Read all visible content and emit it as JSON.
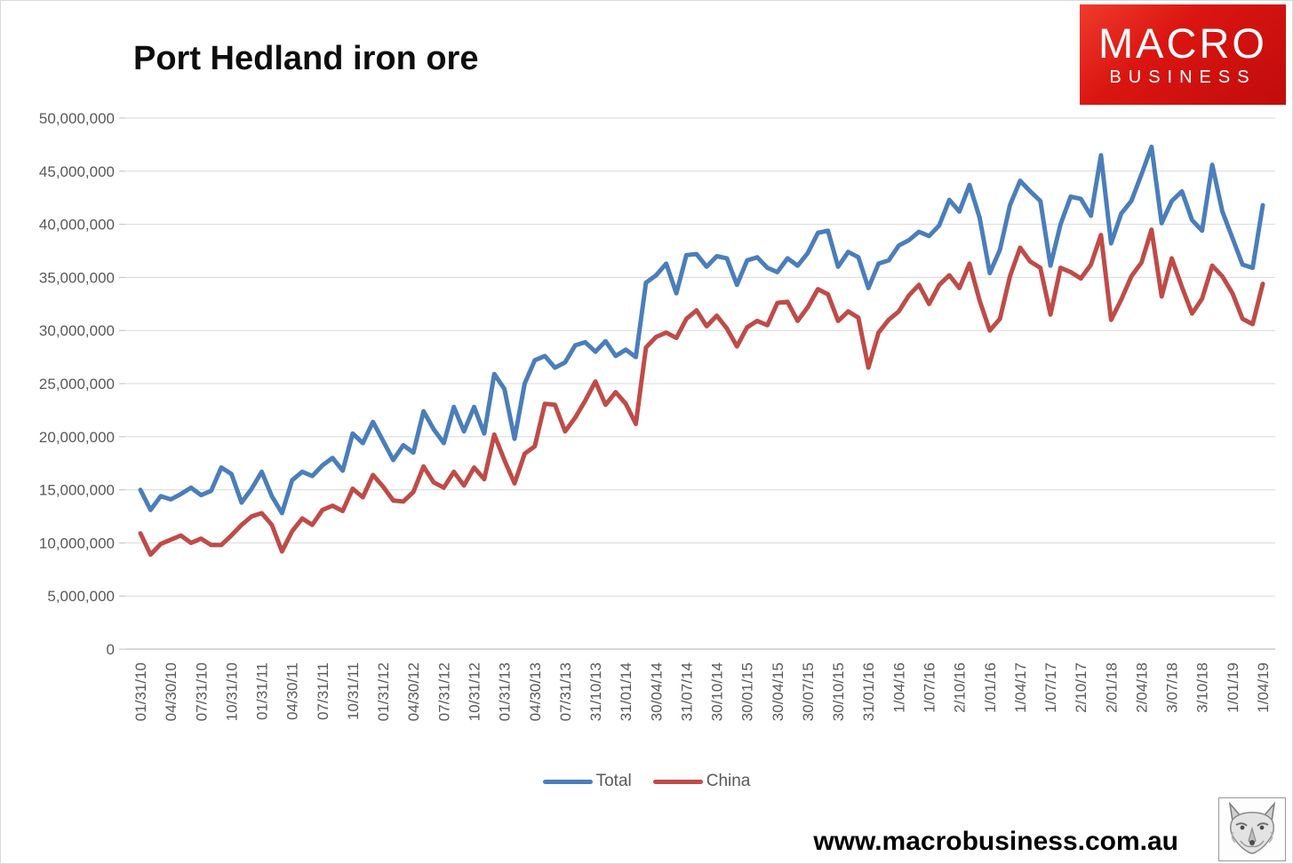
{
  "page": {
    "website": "www.macrobusiness.com.au"
  },
  "logo": {
    "line1": "MACRO",
    "line2": "BUSINESS",
    "bg_color": "#d6120f",
    "text_color": "#ffffff"
  },
  "footer_logo": {
    "icon": "fox-head-icon"
  },
  "legend": [
    {
      "label": "Total",
      "color": "#4a7ebb"
    },
    {
      "label": "China",
      "color": "#bf4b47"
    }
  ],
  "colors": {
    "total_line": "#4a7ebb",
    "china_line": "#bf4b47",
    "gridline": "#d9d9d9",
    "axis_line": "#bfbfbf",
    "tick_text": "#595959",
    "title_text": "#0d0d0d"
  },
  "chart_data": {
    "type": "line",
    "title": "Port Hedland iron ore",
    "xlabel": "",
    "ylabel": "",
    "unit": "tonnes per month",
    "value_scale": 1000000,
    "grid": "horizontal",
    "legend_position": "bottom",
    "y_axis": {
      "min": 0,
      "max": 50000000,
      "tick_interval": 5000000,
      "tick_labels": [
        "50,000,000",
        "45,000,000",
        "40,000,000",
        "35,000,000",
        "30,000,000",
        "25,000,000",
        "20,000,000",
        "15,000,000",
        "10,000,000",
        "5,000,000",
        "0"
      ]
    },
    "x_axis": {
      "tick_every_n_points": 3,
      "tick_labels": [
        "01/31/10",
        "04/30/10",
        "07/31/10",
        "10/31/10",
        "01/31/11",
        "04/30/11",
        "07/31/11",
        "10/31/11",
        "01/31/12",
        "04/30/12",
        "07/31/12",
        "10/31/12",
        "01/31/13",
        "04/30/13",
        "07/31/13",
        "31/10/13",
        "31/01/14",
        "30/04/14",
        "31/07/14",
        "30/10/14",
        "30/01/15",
        "30/04/15",
        "30/07/15",
        "30/10/15",
        "31/01/16",
        "1/04/16",
        "1/07/16",
        "2/10/16",
        "1/01/16",
        "1/04/17",
        "1/07/17",
        "2/10/17",
        "2/01/18",
        "2/04/18",
        "3/07/18",
        "3/10/18",
        "1/01/19",
        "1/04/19"
      ]
    },
    "series": [
      {
        "name": "Total",
        "color": "#4a7ebb",
        "values_millions": [
          15.0,
          13.1,
          14.4,
          14.1,
          14.6,
          15.2,
          14.5,
          14.9,
          17.1,
          16.5,
          13.8,
          15.1,
          16.7,
          14.4,
          12.8,
          15.9,
          16.7,
          16.3,
          17.3,
          18.0,
          16.8,
          20.3,
          19.4,
          21.4,
          19.6,
          17.8,
          19.2,
          18.5,
          22.4,
          20.7,
          19.4,
          22.8,
          20.5,
          22.8,
          20.3,
          25.9,
          24.5,
          19.8,
          25.0,
          27.2,
          27.6,
          26.5,
          27.0,
          28.6,
          28.9,
          28.0,
          29.0,
          27.6,
          28.2,
          27.5,
          34.5,
          35.2,
          36.3,
          33.5,
          37.1,
          37.2,
          36.0,
          37.0,
          36.8,
          34.3,
          36.6,
          36.9,
          35.9,
          35.5,
          36.8,
          36.1,
          37.3,
          39.2,
          39.4,
          36.0,
          37.4,
          36.9,
          34.0,
          36.3,
          36.6,
          38.0,
          38.5,
          39.3,
          38.9,
          39.9,
          42.3,
          41.2,
          43.7,
          40.6,
          35.4,
          37.6,
          41.8,
          44.1,
          43.1,
          42.2,
          36.1,
          40.0,
          42.6,
          42.4,
          40.8,
          46.5,
          38.2,
          41.0,
          42.2,
          44.7,
          47.3,
          40.1,
          42.2,
          43.1,
          40.4,
          39.4,
          45.6,
          41.2,
          38.7,
          36.2,
          35.9,
          41.8
        ]
      },
      {
        "name": "China",
        "color": "#bf4b47",
        "values_millions": [
          10.9,
          8.9,
          9.9,
          10.3,
          10.7,
          10.0,
          10.4,
          9.8,
          9.8,
          10.7,
          11.7,
          12.5,
          12.8,
          11.7,
          9.2,
          11.1,
          12.3,
          11.7,
          13.1,
          13.5,
          13.0,
          15.1,
          14.3,
          16.4,
          15.3,
          14.0,
          13.9,
          14.8,
          17.2,
          15.7,
          15.2,
          16.7,
          15.4,
          17.1,
          16.0,
          20.2,
          17.8,
          15.6,
          18.4,
          19.1,
          23.1,
          23.0,
          20.5,
          21.8,
          23.4,
          25.2,
          23.0,
          24.2,
          23.1,
          21.2,
          28.4,
          29.4,
          29.8,
          29.3,
          31.1,
          31.9,
          30.4,
          31.4,
          30.2,
          28.5,
          30.3,
          30.9,
          30.5,
          32.6,
          32.7,
          30.9,
          32.2,
          33.9,
          33.4,
          30.9,
          31.8,
          31.2,
          26.5,
          29.8,
          31.0,
          31.8,
          33.3,
          34.3,
          32.5,
          34.3,
          35.2,
          34.0,
          36.3,
          32.8,
          30.0,
          31.1,
          35.1,
          37.8,
          36.5,
          35.9,
          31.5,
          35.9,
          35.5,
          34.9,
          36.2,
          39.0,
          31.0,
          32.9,
          35.1,
          36.4,
          39.5,
          33.2,
          36.8,
          34.1,
          31.6,
          33.0,
          36.1,
          35.1,
          33.5,
          31.1,
          30.6,
          34.4
        ]
      }
    ]
  }
}
